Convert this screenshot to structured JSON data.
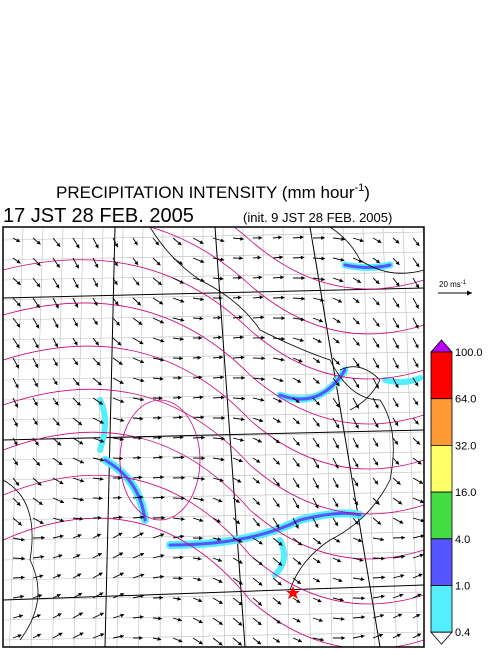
{
  "header": {
    "title": "PRECIPITATION INTENSITY (mm hour",
    "title_exponent": "-1",
    "title_close": ")",
    "valid_time": "17 JST 28 FEB. 2005",
    "init_time": "(init. 9 JST 28 FEB. 2005)"
  },
  "wind_scale": {
    "label": "20 ms",
    "exponent": "-1"
  },
  "colorbar": {
    "labels": [
      "100.0",
      "64.0",
      "32.0",
      "16.0",
      "4.0",
      "1.0",
      "0.4"
    ],
    "colors": [
      "#ff0000",
      "#ff9933",
      "#ffff66",
      "#44dd44",
      "#5555ff",
      "#55eeff"
    ],
    "over_color": "#bb00ff",
    "under_color": "#ffffff"
  }
}
